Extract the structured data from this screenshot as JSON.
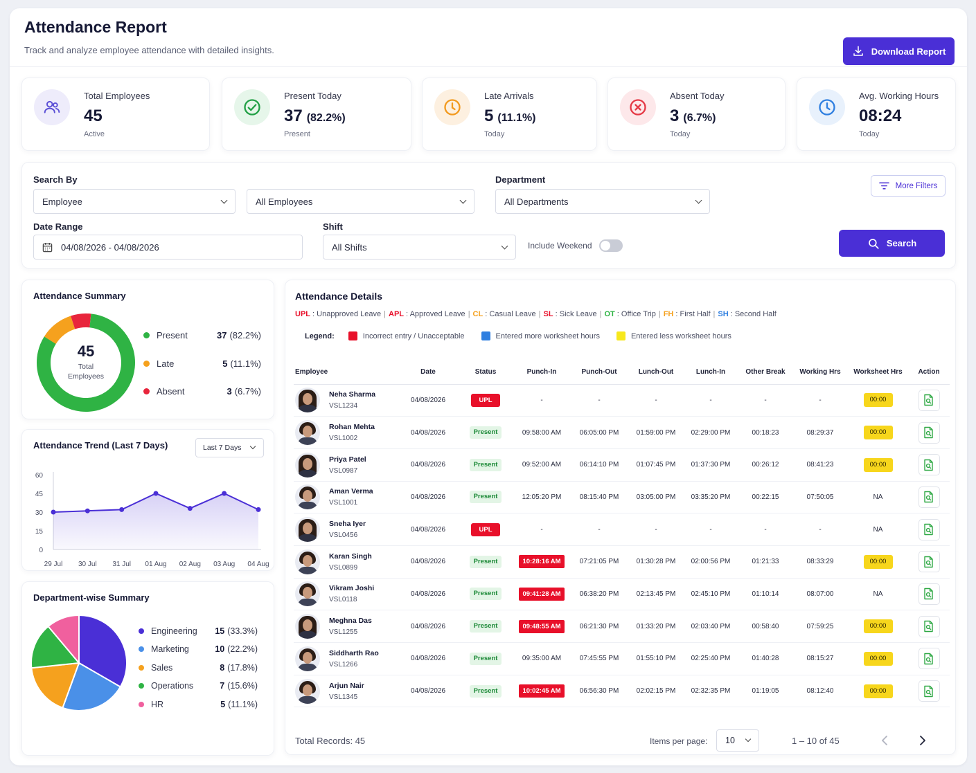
{
  "header": {
    "title": "Attendance Report",
    "subtitle": "Track and analyze employee attendance with detailed insights.",
    "download_label": "Download Report"
  },
  "stats": [
    {
      "label": "Total Employees",
      "value": "45",
      "pct": "",
      "sub": "Active",
      "icon": "users-icon",
      "color": "#5b4fd6",
      "bg": "#eeecfb"
    },
    {
      "label": "Present Today",
      "value": "37",
      "pct": "(82.2%)",
      "sub": "Present",
      "icon": "check-circle-icon",
      "color": "#22a046",
      "bg": "#e6f6ea"
    },
    {
      "label": "Late Arrivals",
      "value": "5",
      "pct": "(11.1%)",
      "sub": "Today",
      "icon": "clock-icon",
      "color": "#f29a1f",
      "bg": "#fdf0e0"
    },
    {
      "label": "Absent Today",
      "value": "3",
      "pct": "(6.7%)",
      "sub": "Today",
      "icon": "x-circle-icon",
      "color": "#e53946",
      "bg": "#fde8ea"
    },
    {
      "label": "Avg. Working Hours",
      "value": "08:24",
      "pct": "",
      "sub": "Today",
      "icon": "clock-icon",
      "color": "#2f7fe0",
      "bg": "#e8f1fc"
    }
  ],
  "filters": {
    "search_by_label": "Search By",
    "search_by_value": "Employee",
    "employees_value": "All Employees",
    "department_label": "Department",
    "department_value": "All Departments",
    "more_filters_label": "More Filters",
    "date_range_label": "Date Range",
    "date_range_value": "04/08/2026 - 04/08/2026",
    "shift_label": "Shift",
    "shift_value": "All Shifts",
    "include_weekend_label": "Include Weekend",
    "include_weekend_on": false,
    "search_label": "Search"
  },
  "summary": {
    "title": "Attendance Summary",
    "center_value": "45",
    "center_label_1": "Total",
    "center_label_2": "Employees",
    "items": [
      {
        "label": "Present",
        "count": "37",
        "pct": "(82.2%)",
        "color": "#2fb344",
        "value": 37
      },
      {
        "label": "Late",
        "count": "5",
        "pct": "(11.1%)",
        "color": "#f5a11e",
        "value": 5
      },
      {
        "label": "Absent",
        "count": "3",
        "pct": "(6.7%)",
        "color": "#e8253c",
        "value": 3
      }
    ]
  },
  "trend": {
    "title": "Attendance Trend (Last 7 Days)",
    "range_label": "Last 7 Days"
  },
  "chart_data": [
    {
      "type": "line",
      "x": [
        "29 Jul",
        "30 Jul",
        "31 Jul",
        "01 Aug",
        "02 Aug",
        "03 Aug",
        "04 Aug"
      ],
      "series": [
        {
          "values": [
            30,
            31,
            32,
            45,
            33,
            45,
            32
          ]
        }
      ],
      "ylim": [
        0,
        60
      ],
      "yticks": [
        0,
        15,
        30,
        45,
        60
      ],
      "color": "#4a2fd6"
    },
    {
      "type": "pie",
      "title": "Department-wise Summary",
      "categories": [
        "Engineering",
        "Marketing",
        "Sales",
        "Operations",
        "HR"
      ],
      "values": [
        15,
        10,
        8,
        7,
        5
      ],
      "pct": [
        "(33.3%)",
        "(22.2%)",
        "(17.8%)",
        "(15.6%)",
        "(11.1%)"
      ],
      "colors": [
        "#4a2fd6",
        "#4a90e8",
        "#f5a11e",
        "#2fb344",
        "#f0609e"
      ]
    }
  ],
  "details": {
    "title": "Attendance Details",
    "codes": [
      {
        "code": "UPL",
        "desc": "Unapproved Leave",
        "color": "#e8102a"
      },
      {
        "code": "APL",
        "desc": "Approved Leave",
        "color": "#e8102a"
      },
      {
        "code": "CL",
        "desc": "Casual Leave",
        "color": "#f5a11e"
      },
      {
        "code": "SL",
        "desc": "Sick Leave",
        "color": "#e8102a"
      },
      {
        "code": "OT",
        "desc": "Office Trip",
        "color": "#2fb344"
      },
      {
        "code": "FH",
        "desc": "First Half",
        "color": "#f5a11e"
      },
      {
        "code": "SH",
        "desc": "Second Half",
        "color": "#2f7fe0"
      }
    ],
    "legend_title": "Legend:",
    "legend": [
      {
        "label": "Incorrect entry / Unacceptable",
        "color": "#e8102a"
      },
      {
        "label": "Entered more worksheet hours",
        "color": "#2f7fe0"
      },
      {
        "label": "Entered less worksheet hours",
        "color": "#f7e81c"
      }
    ],
    "columns": [
      "Employee",
      "Date",
      "Status",
      "Punch-In",
      "Punch-Out",
      "Lunch-Out",
      "Lunch-In",
      "Other Break",
      "Working Hrs",
      "Worksheet Hrs",
      "Action"
    ],
    "rows": [
      {
        "name": "Neha Sharma",
        "id": "VSL1234",
        "date": "04/08/2026",
        "status": "UPL",
        "punch_in": "-",
        "punch_in_flag": false,
        "punch_out": "-",
        "lunch_out": "-",
        "lunch_in": "-",
        "other_break": "-",
        "working": "-",
        "worksheet": "00:00",
        "ws_flag": true,
        "gender": "f"
      },
      {
        "name": "Rohan Mehta",
        "id": "VSL1002",
        "date": "04/08/2026",
        "status": "Present",
        "punch_in": "09:58:00 AM",
        "punch_in_flag": false,
        "punch_out": "06:05:00 PM",
        "lunch_out": "01:59:00 PM",
        "lunch_in": "02:29:00 PM",
        "other_break": "00:18:23",
        "working": "08:29:37",
        "worksheet": "00:00",
        "ws_flag": true,
        "gender": "m"
      },
      {
        "name": "Priya Patel",
        "id": "VSL0987",
        "date": "04/08/2026",
        "status": "Present",
        "punch_in": "09:52:00 AM",
        "punch_in_flag": false,
        "punch_out": "06:14:10 PM",
        "lunch_out": "01:07:45 PM",
        "lunch_in": "01:37:30 PM",
        "other_break": "00:26:12",
        "working": "08:41:23",
        "worksheet": "00:00",
        "ws_flag": true,
        "gender": "f"
      },
      {
        "name": "Aman Verma",
        "id": "VSL1001",
        "date": "04/08/2026",
        "status": "Present",
        "punch_in": "12:05:20 PM",
        "punch_in_flag": false,
        "punch_out": "08:15:40 PM",
        "lunch_out": "03:05:00 PM",
        "lunch_in": "03:35:20 PM",
        "other_break": "00:22:15",
        "working": "07:50:05",
        "worksheet": "NA",
        "ws_flag": false,
        "gender": "m"
      },
      {
        "name": "Sneha Iyer",
        "id": "VSL0456",
        "date": "04/08/2026",
        "status": "UPL",
        "punch_in": "-",
        "punch_in_flag": false,
        "punch_out": "-",
        "lunch_out": "-",
        "lunch_in": "-",
        "other_break": "-",
        "working": "-",
        "worksheet": "NA",
        "ws_flag": false,
        "gender": "f"
      },
      {
        "name": "Karan Singh",
        "id": "VSL0899",
        "date": "04/08/2026",
        "status": "Present",
        "punch_in": "10:28:16 AM",
        "punch_in_flag": true,
        "punch_out": "07:21:05 PM",
        "lunch_out": "01:30:28 PM",
        "lunch_in": "02:00:56 PM",
        "other_break": "01:21:33",
        "working": "08:33:29",
        "worksheet": "00:00",
        "ws_flag": true,
        "gender": "m"
      },
      {
        "name": "Vikram Joshi",
        "id": "VSL0118",
        "date": "04/08/2026",
        "status": "Present",
        "punch_in": "09:41:28 AM",
        "punch_in_flag": true,
        "punch_out": "06:38:20 PM",
        "lunch_out": "02:13:45 PM",
        "lunch_in": "02:45:10 PM",
        "other_break": "01:10:14",
        "working": "08:07:00",
        "worksheet": "NA",
        "ws_flag": false,
        "gender": "m"
      },
      {
        "name": "Meghna Das",
        "id": "VSL1255",
        "date": "04/08/2026",
        "status": "Present",
        "punch_in": "09:48:55 AM",
        "punch_in_flag": true,
        "punch_out": "06:21:30 PM",
        "lunch_out": "01:33:20 PM",
        "lunch_in": "02:03:40 PM",
        "other_break": "00:58:40",
        "working": "07:59:25",
        "worksheet": "00:00",
        "ws_flag": true,
        "gender": "f"
      },
      {
        "name": "Siddharth Rao",
        "id": "VSL1266",
        "date": "04/08/2026",
        "status": "Present",
        "punch_in": "09:35:00 AM",
        "punch_in_flag": false,
        "punch_out": "07:45:55 PM",
        "lunch_out": "01:55:10 PM",
        "lunch_in": "02:25:40 PM",
        "other_break": "01:40:28",
        "working": "08:15:27",
        "worksheet": "00:00",
        "ws_flag": true,
        "gender": "m"
      },
      {
        "name": "Arjun Nair",
        "id": "VSL1345",
        "date": "04/08/2026",
        "status": "Present",
        "punch_in": "10:02:45 AM",
        "punch_in_flag": true,
        "punch_out": "06:56:30 PM",
        "lunch_out": "02:02:15 PM",
        "lunch_in": "02:32:35 PM",
        "other_break": "01:19:05",
        "working": "08:12:40",
        "worksheet": "00:00",
        "ws_flag": true,
        "gender": "m"
      }
    ],
    "total_records": "Total Records: 45",
    "items_per_page_label": "Items per page:",
    "items_per_page": "10",
    "range": "1 – 10 of 45"
  }
}
